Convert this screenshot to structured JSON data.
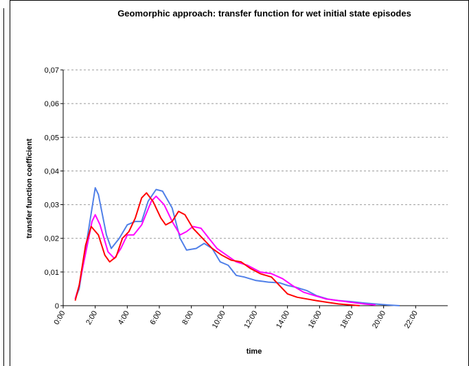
{
  "chart_data": {
    "type": "line",
    "title": "Geomorphic approach: transfer function for wet initial state episodes",
    "xlabel": "time",
    "ylabel": "transfer function coefficient",
    "xlim": [
      0,
      24
    ],
    "ylim": [
      0,
      0.07
    ],
    "xticks": [
      {
        "value": 0,
        "label": "0:00"
      },
      {
        "value": 2,
        "label": "2:00"
      },
      {
        "value": 4,
        "label": "4:00"
      },
      {
        "value": 6,
        "label": "6:00"
      },
      {
        "value": 8,
        "label": "8:00"
      },
      {
        "value": 10,
        "label": "10:00"
      },
      {
        "value": 12,
        "label": "12:00"
      },
      {
        "value": 14,
        "label": "14:00"
      },
      {
        "value": 16,
        "label": "16:00"
      },
      {
        "value": 18,
        "label": "18:00"
      },
      {
        "value": 20,
        "label": "20:00"
      },
      {
        "value": 22,
        "label": "22:00"
      }
    ],
    "yticks": [
      0,
      {
        "value": 0.01,
        "label": "0,01"
      },
      {
        "value": 0.02,
        "label": "0,02"
      },
      {
        "value": 0.03,
        "label": "0,03"
      },
      {
        "value": 0.04,
        "label": "0,04"
      },
      {
        "value": 0.05,
        "label": "0,05"
      },
      {
        "value": 0.06,
        "label": "0,06"
      },
      {
        "value": 0.07,
        "label": "0,07"
      }
    ],
    "grid": true,
    "series": [
      {
        "color": "#4f7fe8",
        "x": [
          0.75,
          1.0,
          2.0,
          2.2,
          2.7,
          3.0,
          3.5,
          4.0,
          4.5,
          4.9,
          5.3,
          5.8,
          6.2,
          6.8,
          7.3,
          7.7,
          8.3,
          8.8,
          9.3,
          9.8,
          10.3,
          10.8,
          11.3,
          12.0,
          12.8,
          13.5,
          14.0,
          14.5,
          15.2,
          15.8,
          16.5,
          17.2,
          18.0,
          18.8,
          19.5,
          20.3,
          21.0
        ],
        "values": [
          0.002,
          0.005,
          0.035,
          0.033,
          0.021,
          0.017,
          0.02,
          0.024,
          0.025,
          0.025,
          0.031,
          0.0345,
          0.034,
          0.029,
          0.02,
          0.0165,
          0.017,
          0.0185,
          0.017,
          0.013,
          0.012,
          0.009,
          0.0085,
          0.0075,
          0.007,
          0.0068,
          0.006,
          0.0055,
          0.0045,
          0.003,
          0.002,
          0.0015,
          0.0012,
          0.0008,
          0.0005,
          0.0002,
          0
        ]
      },
      {
        "color": "#ff00ff",
        "x": [
          0.75,
          1.0,
          1.8,
          2.0,
          2.3,
          2.8,
          3.2,
          3.6,
          4.0,
          4.4,
          4.9,
          5.5,
          5.8,
          6.3,
          6.8,
          7.3,
          7.7,
          8.1,
          8.6,
          9.1,
          9.6,
          10.2,
          10.8,
          11.5,
          12.3,
          13.0,
          13.7,
          14.3,
          15.0,
          15.7,
          16.4,
          17.2,
          18.0,
          18.8,
          19.5
        ],
        "values": [
          0.002,
          0.006,
          0.025,
          0.027,
          0.024,
          0.016,
          0.014,
          0.017,
          0.021,
          0.021,
          0.024,
          0.031,
          0.0325,
          0.03,
          0.025,
          0.021,
          0.022,
          0.0235,
          0.023,
          0.02,
          0.017,
          0.015,
          0.013,
          0.012,
          0.01,
          0.0095,
          0.008,
          0.006,
          0.004,
          0.003,
          0.002,
          0.0015,
          0.001,
          0.0005,
          0.0002
        ]
      },
      {
        "color": "#ff0000",
        "x": [
          0.75,
          1.0,
          1.4,
          1.75,
          2.2,
          2.6,
          2.9,
          3.3,
          3.7,
          4.1,
          4.5,
          4.9,
          5.2,
          5.6,
          6.1,
          6.4,
          6.8,
          7.2,
          7.6,
          8.1,
          8.7,
          9.3,
          9.9,
          10.5,
          11.1,
          11.7,
          12.3,
          13.0,
          13.5,
          14.0,
          14.6,
          15.2,
          15.8,
          16.5,
          17.2,
          18.0,
          18.5
        ],
        "values": [
          0.0015,
          0.006,
          0.018,
          0.0235,
          0.021,
          0.015,
          0.013,
          0.0145,
          0.02,
          0.022,
          0.026,
          0.032,
          0.0335,
          0.031,
          0.026,
          0.024,
          0.025,
          0.028,
          0.027,
          0.023,
          0.02,
          0.017,
          0.015,
          0.0135,
          0.013,
          0.011,
          0.0095,
          0.0085,
          0.006,
          0.0035,
          0.0025,
          0.002,
          0.0015,
          0.001,
          0.0005,
          0.0002,
          0
        ]
      }
    ]
  }
}
